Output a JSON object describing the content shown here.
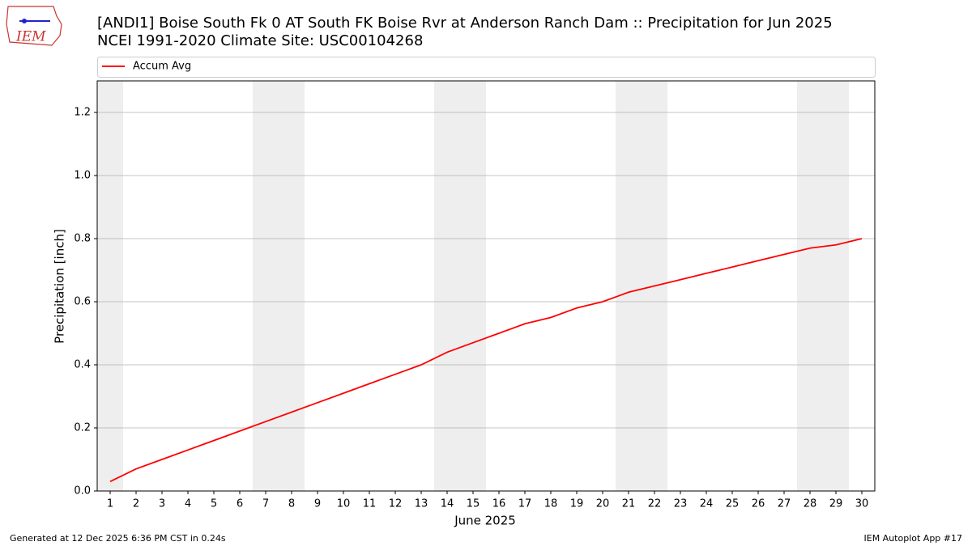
{
  "chart_data": {
    "type": "line",
    "logo": "IEM",
    "title": "[ANDI1] Boise South Fk 0 AT South FK Boise Rvr at Anderson Ranch Dam :: Precipitation for Jun 2025",
    "subtitle": "NCEI 1991-2020 Climate Site: USC00104268",
    "x_label": "June 2025",
    "y_label": "Precipitation [inch]",
    "x": [
      1,
      2,
      3,
      4,
      5,
      6,
      7,
      8,
      9,
      10,
      11,
      12,
      13,
      14,
      15,
      16,
      17,
      18,
      19,
      20,
      21,
      22,
      23,
      24,
      25,
      26,
      27,
      28,
      29,
      30
    ],
    "series": [
      {
        "name": "Accum Avg",
        "color": "#ff0000",
        "values": [
          0.03,
          0.07,
          0.1,
          0.13,
          0.16,
          0.19,
          0.22,
          0.25,
          0.28,
          0.31,
          0.34,
          0.37,
          0.4,
          0.44,
          0.47,
          0.5,
          0.53,
          0.55,
          0.58,
          0.6,
          0.63,
          0.65,
          0.67,
          0.69,
          0.71,
          0.73,
          0.75,
          0.77,
          0.78,
          0.8
        ]
      }
    ],
    "xlim": [
      0.5,
      30.5
    ],
    "xticks": [
      1,
      2,
      3,
      4,
      5,
      6,
      7,
      8,
      9,
      10,
      11,
      12,
      13,
      14,
      15,
      16,
      17,
      18,
      19,
      20,
      21,
      22,
      23,
      24,
      25,
      26,
      27,
      28,
      29,
      30
    ],
    "ylim": [
      0,
      1.3
    ],
    "yticks": [
      {
        "value": 0,
        "label": "0.0"
      },
      0.2,
      0.4,
      0.6,
      0.8,
      {
        "value": 1,
        "label": "1.0"
      },
      1.2
    ],
    "grid": true,
    "weekend_bands": [
      [
        0.5,
        1.5
      ],
      [
        6.5,
        8.5
      ],
      [
        13.5,
        15.5
      ],
      [
        20.5,
        22.5
      ],
      [
        27.5,
        29.5
      ]
    ],
    "weekend_color": "#eeeeee",
    "legend": "top",
    "footer_left": "Generated at 12 Dec 2025 6:36 PM CST in 0.24s",
    "footer_right": "IEM Autoplot App #17"
  }
}
